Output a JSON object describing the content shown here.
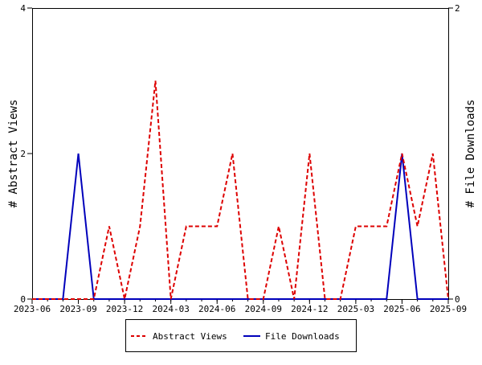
{
  "chart_data": {
    "type": "line",
    "title": "",
    "x": [
      "2023-06",
      "2023-07",
      "2023-08",
      "2023-09",
      "2023-10",
      "2023-11",
      "2023-12",
      "2024-01",
      "2024-02",
      "2024-03",
      "2024-04",
      "2024-05",
      "2024-06",
      "2024-07",
      "2024-08",
      "2024-09",
      "2024-10",
      "2024-11",
      "2024-12",
      "2025-01",
      "2025-02",
      "2025-03",
      "2025-04",
      "2025-05",
      "2025-06",
      "2025-07",
      "2025-08",
      "2025-09"
    ],
    "x_ticks": [
      "2023-06",
      "2023-09",
      "2023-12",
      "2024-03",
      "2024-06",
      "2024-09",
      "2024-12",
      "2025-03",
      "2025-06",
      "2025-09"
    ],
    "ylabel": "# Abstract Views",
    "y2label": "# File Downloads",
    "ylim": [
      0,
      4
    ],
    "y2lim": [
      0,
      2
    ],
    "y_ticks": [
      "0",
      "2",
      "4"
    ],
    "y2_ticks": [
      "0",
      "2"
    ],
    "legend_position": "bottom",
    "grid": false,
    "series": [
      {
        "name": "Abstract Views",
        "axis": "left",
        "color": "#dd0000",
        "style": "dashed",
        "values": [
          0,
          0,
          0,
          0,
          0,
          1,
          0,
          1,
          3,
          0,
          1,
          1,
          1,
          2,
          0,
          0,
          1,
          0,
          2,
          0,
          0,
          1,
          1,
          1,
          2,
          1,
          2,
          0
        ]
      },
      {
        "name": "File Downloads",
        "axis": "right",
        "color": "#0000bb",
        "style": "solid",
        "values": [
          0,
          0,
          0,
          1,
          0,
          0,
          0,
          0,
          0,
          0,
          0,
          0,
          0,
          0,
          0,
          0,
          0,
          0,
          0,
          0,
          0,
          0,
          0,
          0,
          1,
          0,
          0,
          0
        ]
      }
    ]
  }
}
